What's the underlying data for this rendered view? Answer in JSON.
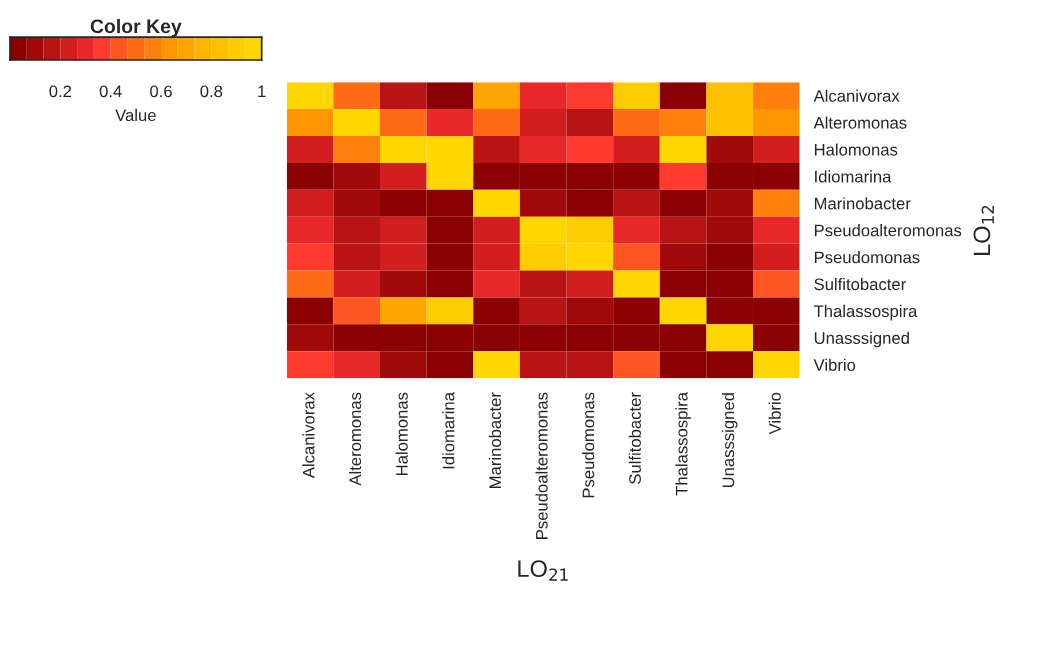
{
  "chart_data": {
    "type": "heatmap",
    "categories": [
      "Alcanivorax",
      "Alteromonas",
      "Halomonas",
      "Idiomarina",
      "Marinobacter",
      "Pseudoalteromonas",
      "Pseudomonas",
      "Sulfitobacter",
      "Thalassospira",
      "Unasssigned",
      "Vibrio"
    ],
    "y_categories": [
      "Alcanivorax",
      "Alteromonas",
      "Halomonas",
      "Idiomarina",
      "Marinobacter",
      "Pseudoalteromonas",
      "Pseudomonas",
      "Sulfitobacter",
      "Thalassospira",
      "Unasssigned",
      "Vibrio"
    ],
    "cells": [
      [
        1,
        0.5,
        0.17,
        0.03,
        0.7,
        0.3,
        0.37,
        0.9,
        0.03,
        0.83,
        0.57
      ],
      [
        0.63,
        1,
        0.5,
        0.3,
        0.5,
        0.23,
        0.17,
        0.5,
        0.57,
        0.83,
        0.63
      ],
      [
        0.23,
        0.57,
        1,
        0.97,
        0.17,
        0.3,
        0.37,
        0.23,
        0.97,
        0.1,
        0.23
      ],
      [
        0.03,
        0.1,
        0.23,
        1,
        0.03,
        0.03,
        0.03,
        0.03,
        0.37,
        0.03,
        0.03
      ],
      [
        0.23,
        0.1,
        0.03,
        0.03,
        1,
        0.1,
        0.03,
        0.17,
        0.03,
        0.1,
        0.57
      ],
      [
        0.3,
        0.17,
        0.23,
        0.03,
        0.23,
        1,
        0.9,
        0.3,
        0.17,
        0.1,
        0.3
      ],
      [
        0.37,
        0.17,
        0.23,
        0.03,
        0.23,
        0.9,
        1,
        0.43,
        0.1,
        0.03,
        0.23
      ],
      [
        0.5,
        0.23,
        0.1,
        0.03,
        0.3,
        0.17,
        0.23,
        1,
        0.03,
        0.03,
        0.43
      ],
      [
        0.03,
        0.43,
        0.7,
        0.9,
        0.03,
        0.17,
        0.1,
        0.03,
        1,
        0.03,
        0.03
      ],
      [
        0.1,
        0.03,
        0.03,
        0.03,
        0.03,
        0.03,
        0.03,
        0.03,
        0.03,
        1,
        0.03
      ],
      [
        0.37,
        0.3,
        0.1,
        0.03,
        1,
        0.17,
        0.17,
        0.43,
        0.03,
        0.03,
        1
      ]
    ],
    "clim": [
      0,
      1
    ],
    "cticks": [
      0.2,
      0.4,
      0.6,
      0.8,
      1
    ],
    "title": "Color Key",
    "clabel": "Value",
    "xlabel": "LO$_{21}$",
    "y2label": "LO$_{12}$"
  }
}
